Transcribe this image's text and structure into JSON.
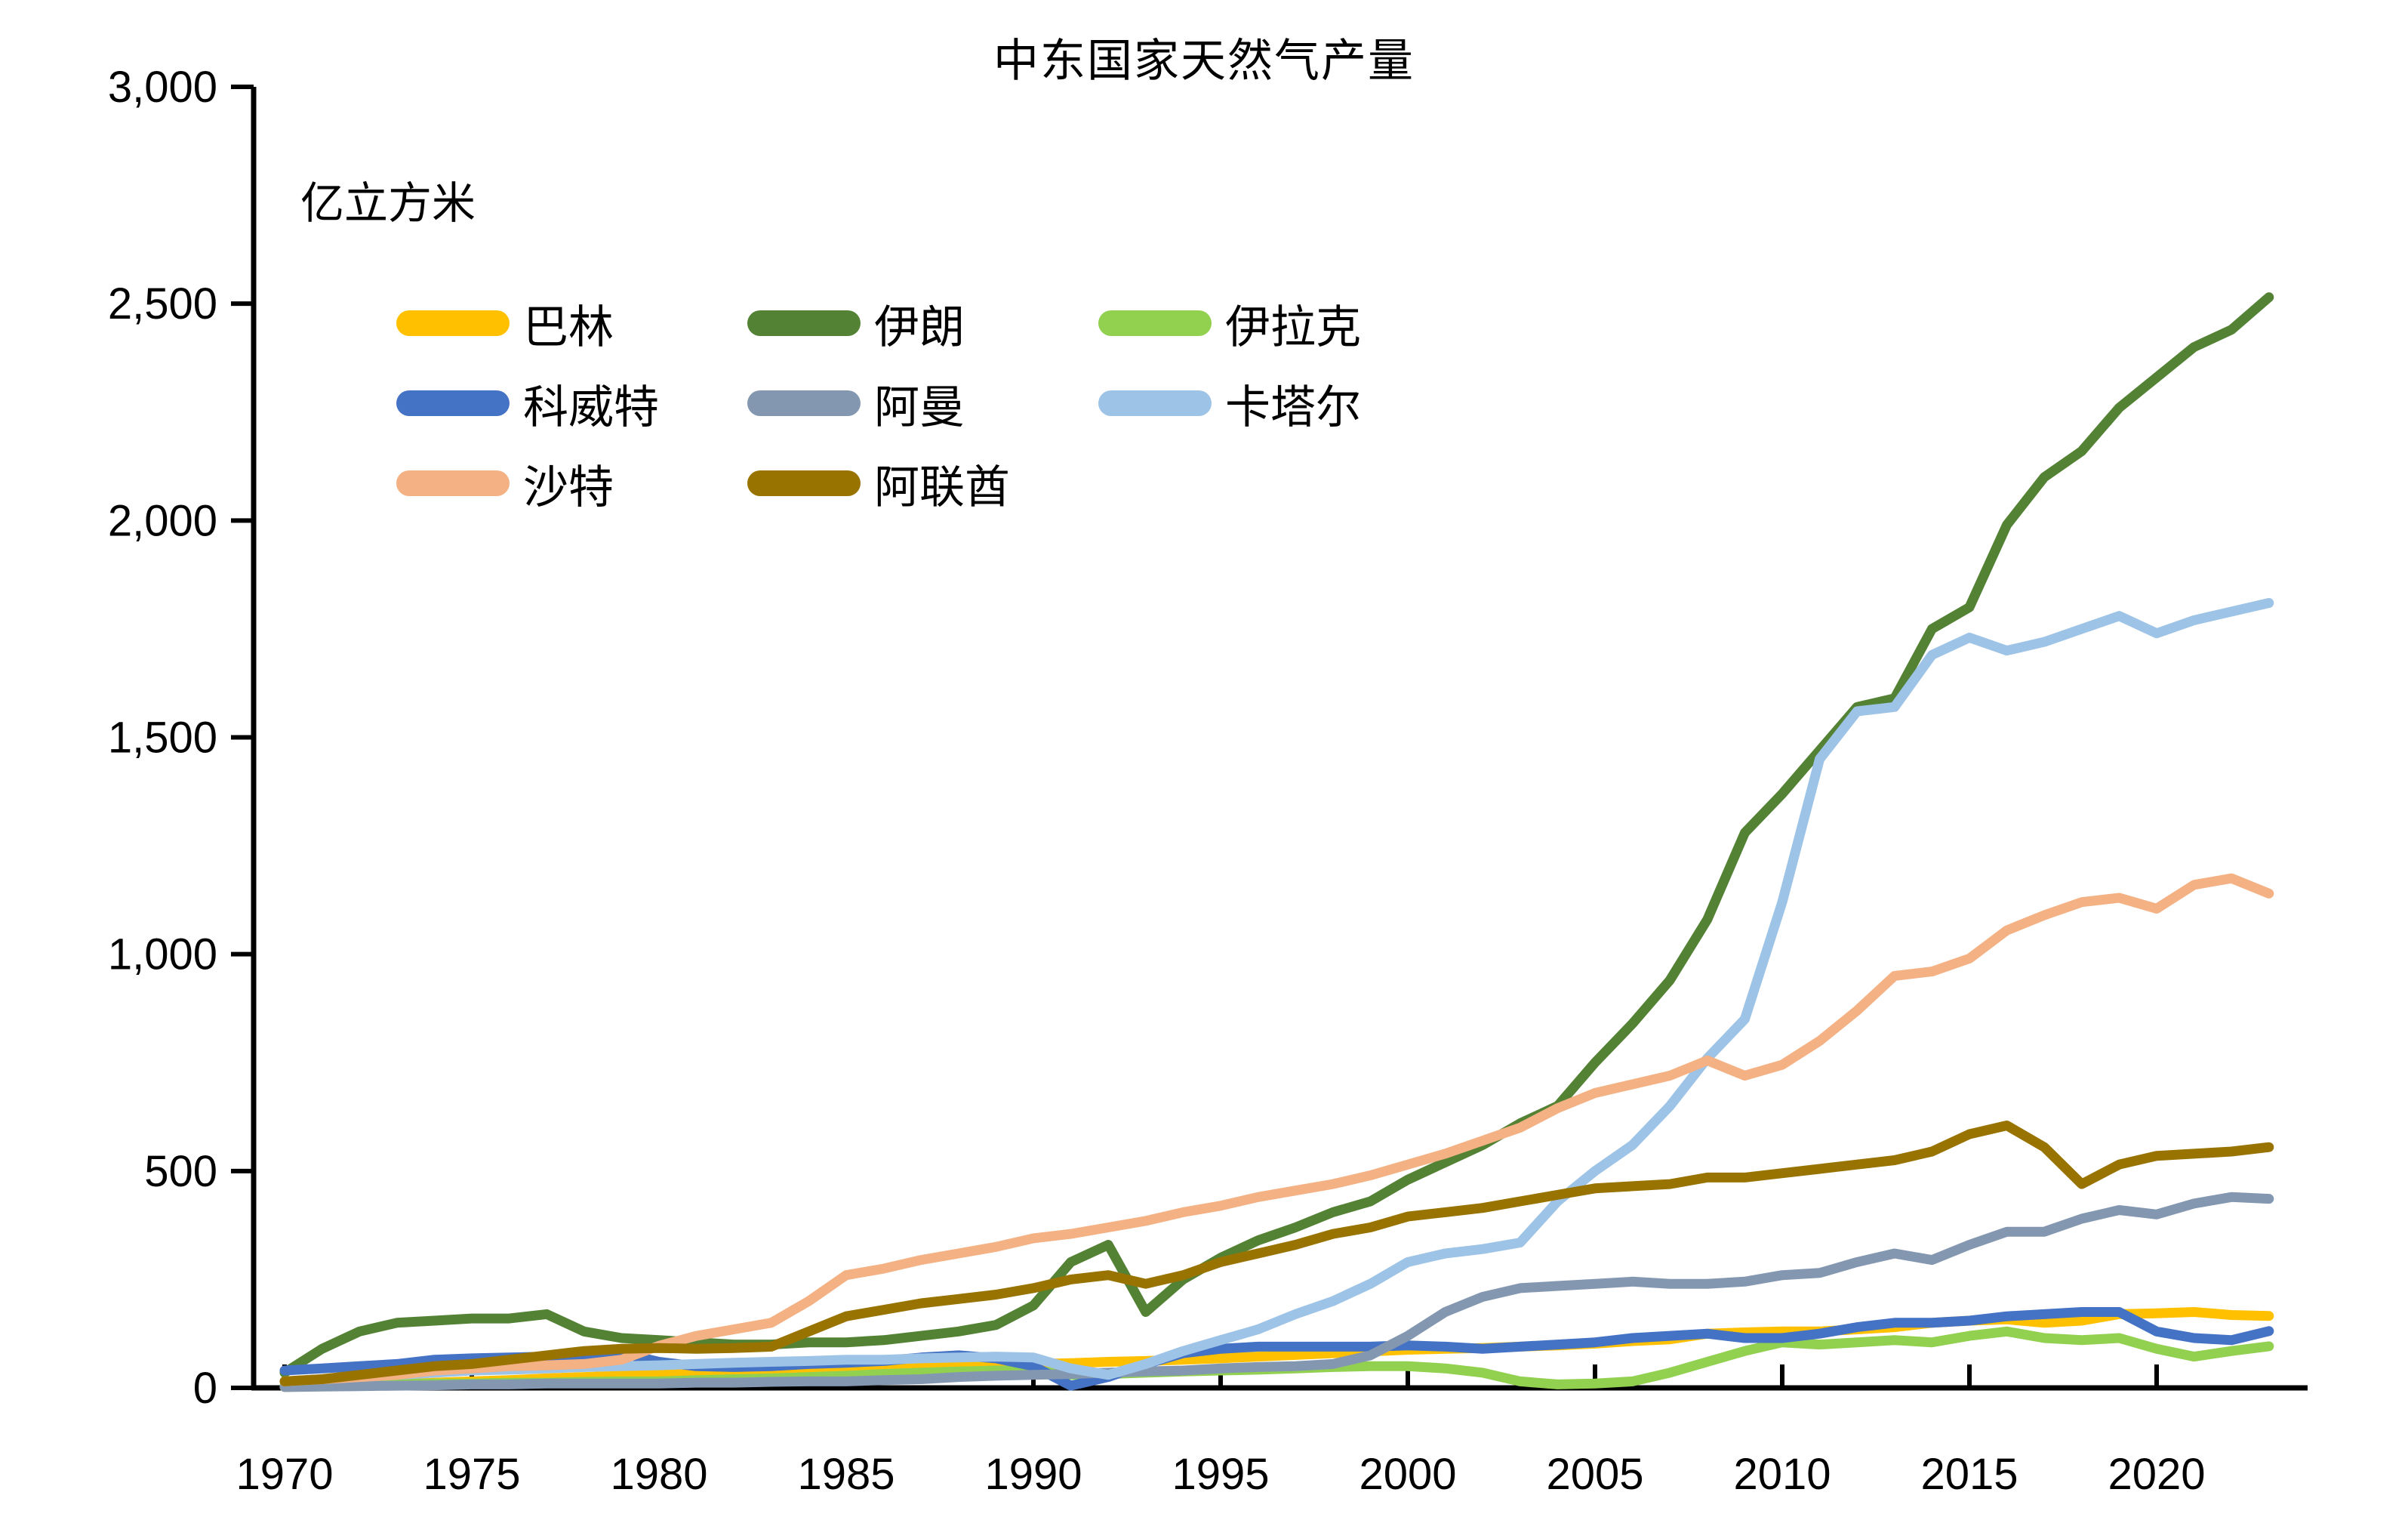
{
  "title": "中东国家天然气产量",
  "unit_label": "亿立方米",
  "chart_data": {
    "type": "line",
    "x_start": 1970,
    "x_end": 2023,
    "x_tick_labels": [
      "1970",
      "1975",
      "1980",
      "1985",
      "1990",
      "1995",
      "2000",
      "2005",
      "2010",
      "2015",
      "2020"
    ],
    "x_ticks": [
      1970,
      1975,
      1980,
      1985,
      1990,
      1995,
      2000,
      2005,
      2010,
      2015,
      2020
    ],
    "y_ticks": [
      0,
      500,
      1000,
      1500,
      2000,
      2500,
      3000
    ],
    "y_tick_labels": [
      "0",
      "500",
      "1,000",
      "1,500",
      "2,000",
      "2,500",
      "3,000"
    ],
    "ylim": [
      0,
      3000
    ],
    "grid": false,
    "legend_position": "upper-left 3-column grid",
    "axis_color": "#000000",
    "years": [
      1970,
      1971,
      1972,
      1973,
      1974,
      1975,
      1976,
      1977,
      1978,
      1979,
      1980,
      1981,
      1982,
      1983,
      1984,
      1985,
      1986,
      1987,
      1988,
      1989,
      1990,
      1991,
      1992,
      1993,
      1994,
      1995,
      1996,
      1997,
      1998,
      1999,
      2000,
      2001,
      2002,
      2003,
      2004,
      2005,
      2006,
      2007,
      2008,
      2009,
      2010,
      2011,
      2012,
      2013,
      2014,
      2015,
      2016,
      2017,
      2018,
      2019,
      2020,
      2021,
      2022,
      2023
    ],
    "series": [
      {
        "key": "bahrain",
        "name": "巴林",
        "color": "#FFC000",
        "values": [
          2,
          4,
          6,
          8,
          12,
          15,
          18,
          22,
          25,
          28,
          30,
          33,
          36,
          38,
          40,
          42,
          44,
          46,
          48,
          52,
          55,
          57,
          60,
          62,
          65,
          68,
          72,
          76,
          80,
          84,
          88,
          90,
          92,
          95,
          98,
          102,
          108,
          112,
          125,
          128,
          130,
          130,
          135,
          140,
          150,
          155,
          158,
          150,
          155,
          170,
          172,
          175,
          168,
          166
        ]
      },
      {
        "key": "iran",
        "name": "伊朗",
        "color": "#548235",
        "values": [
          35,
          90,
          130,
          150,
          155,
          160,
          160,
          170,
          130,
          115,
          110,
          105,
          100,
          100,
          105,
          105,
          110,
          120,
          130,
          145,
          190,
          290,
          330,
          175,
          250,
          300,
          340,
          370,
          405,
          430,
          480,
          520,
          560,
          610,
          650,
          750,
          840,
          940,
          1080,
          1280,
          1370,
          1470,
          1570,
          1590,
          1750,
          1800,
          1990,
          2100,
          2160,
          2260,
          2330,
          2400,
          2440,
          2515
        ]
      },
      {
        "key": "iraq",
        "name": "伊拉克",
        "color": "#92D050",
        "values": [
          5,
          6,
          8,
          10,
          10,
          10,
          12,
          12,
          14,
          15,
          15,
          18,
          20,
          22,
          25,
          28,
          32,
          35,
          38,
          40,
          40,
          30,
          32,
          35,
          38,
          40,
          42,
          45,
          48,
          50,
          50,
          45,
          35,
          15,
          8,
          10,
          15,
          35,
          60,
          85,
          105,
          100,
          105,
          110,
          105,
          120,
          130,
          115,
          110,
          115,
          90,
          72,
          85,
          96
        ]
      },
      {
        "key": "kuwait",
        "name": "科威特",
        "color": "#4472C4",
        "values": [
          40,
          45,
          50,
          55,
          65,
          68,
          70,
          72,
          75,
          80,
          60,
          50,
          48,
          50,
          55,
          58,
          62,
          70,
          75,
          68,
          50,
          5,
          25,
          55,
          80,
          90,
          95,
          95,
          95,
          95,
          98,
          95,
          90,
          95,
          100,
          105,
          115,
          120,
          125,
          115,
          115,
          125,
          140,
          150,
          150,
          155,
          165,
          170,
          175,
          175,
          130,
          115,
          110,
          131
        ]
      },
      {
        "key": "oman",
        "name": "阿曼",
        "color": "#8497B0",
        "values": [
          2,
          3,
          4,
          5,
          6,
          8,
          8,
          10,
          10,
          10,
          10,
          12,
          12,
          14,
          15,
          15,
          18,
          20,
          25,
          28,
          30,
          32,
          35,
          38,
          40,
          45,
          48,
          50,
          55,
          75,
          120,
          175,
          210,
          230,
          235,
          240,
          245,
          240,
          240,
          245,
          260,
          265,
          290,
          310,
          295,
          330,
          360,
          360,
          390,
          410,
          400,
          425,
          440,
          436
        ]
      },
      {
        "key": "qatar",
        "name": "卡塔尔",
        "color": "#9DC3E6",
        "values": [
          15,
          20,
          25,
          30,
          35,
          40,
          42,
          45,
          48,
          50,
          52,
          55,
          58,
          60,
          62,
          65,
          65,
          68,
          70,
          72,
          70,
          45,
          30,
          55,
          85,
          110,
          135,
          170,
          200,
          240,
          290,
          310,
          320,
          335,
          430,
          500,
          560,
          650,
          760,
          850,
          1120,
          1450,
          1560,
          1570,
          1690,
          1730,
          1700,
          1720,
          1750,
          1780,
          1740,
          1770,
          1790,
          1810
        ]
      },
      {
        "key": "saudi",
        "name": "沙特",
        "color": "#F4B183",
        "values": [
          15,
          20,
          25,
          30,
          40,
          45,
          50,
          52,
          55,
          65,
          97,
          120,
          135,
          150,
          200,
          260,
          275,
          295,
          310,
          325,
          345,
          355,
          370,
          385,
          405,
          420,
          440,
          455,
          470,
          490,
          515,
          540,
          570,
          600,
          645,
          680,
          700,
          720,
          755,
          720,
          745,
          800,
          870,
          950,
          960,
          990,
          1055,
          1090,
          1120,
          1130,
          1105,
          1160,
          1175,
          1140
        ]
      },
      {
        "key": "uae",
        "name": "阿联酋",
        "color": "#997300",
        "values": [
          15,
          20,
          30,
          40,
          50,
          55,
          65,
          75,
          85,
          90,
          92,
          90,
          92,
          95,
          130,
          165,
          180,
          195,
          205,
          215,
          230,
          250,
          260,
          240,
          260,
          290,
          310,
          330,
          355,
          370,
          395,
          405,
          415,
          430,
          445,
          460,
          465,
          470,
          485,
          485,
          495,
          505,
          515,
          525,
          545,
          585,
          605,
          555,
          470,
          515,
          535,
          540,
          545,
          555
        ]
      }
    ],
    "legend_order": [
      "bahrain",
      "iran",
      "iraq",
      "kuwait",
      "oman",
      "qatar",
      "saudi",
      "uae"
    ]
  }
}
